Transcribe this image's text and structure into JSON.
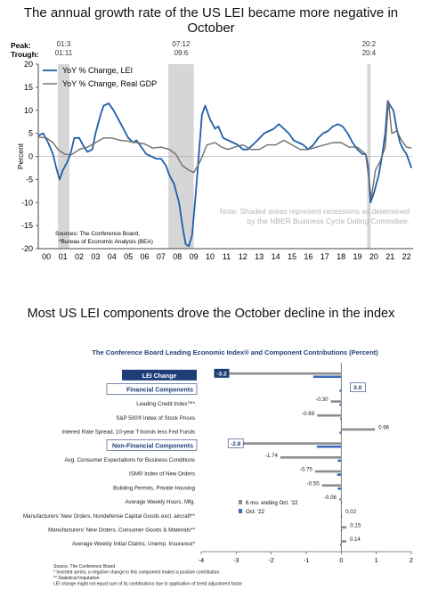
{
  "titles": {
    "top": "The annual growth rate of the US LEI became more negative in October",
    "bottom": "Most US LEI components drove the October decline in the index"
  },
  "chart_data": [
    {
      "type": "line",
      "title": "",
      "ylabel": "Percent",
      "ylim": [
        -20,
        20
      ],
      "yticks": [
        -20,
        -15,
        -10,
        -5,
        0,
        5,
        10,
        15,
        20
      ],
      "xlim": [
        2000.0,
        2022.9
      ],
      "xticks": [
        {
          "label": "00",
          "x": 2000.5
        },
        {
          "label": "01",
          "x": 2001.5
        },
        {
          "label": "02",
          "x": 2002.5
        },
        {
          "label": "03",
          "x": 2003.5
        },
        {
          "label": "04",
          "x": 2004.5
        },
        {
          "label": "05",
          "x": 2005.5
        },
        {
          "label": "06",
          "x": 2006.5
        },
        {
          "label": "07",
          "x": 2007.5
        },
        {
          "label": "08",
          "x": 2008.5
        },
        {
          "label": "09",
          "x": 2009.5
        },
        {
          "label": "10",
          "x": 2010.5
        },
        {
          "label": "11",
          "x": 2011.5
        },
        {
          "label": "12",
          "x": 2012.5
        },
        {
          "label": "13",
          "x": 2013.5
        },
        {
          "label": "14",
          "x": 2014.5
        },
        {
          "label": "15",
          "x": 2015.5
        },
        {
          "label": "16",
          "x": 2016.5
        },
        {
          "label": "17",
          "x": 2017.5
        },
        {
          "label": "18",
          "x": 2018.5
        },
        {
          "label": "19",
          "x": 2019.5
        },
        {
          "label": "20",
          "x": 2020.5
        },
        {
          "label": "21",
          "x": 2021.5
        },
        {
          "label": "22",
          "x": 2022.5
        }
      ],
      "peak_label": "Peak:",
      "trough_label": "Trough:",
      "recessions": [
        {
          "peak": "01:3",
          "trough": "01:11",
          "start": 2001.2,
          "end": 2001.9
        },
        {
          "peak": "07:12",
          "trough": "09:6",
          "start": 2007.95,
          "end": 2009.5
        },
        {
          "peak": "20:2",
          "trough": "20:4",
          "start": 2020.1,
          "end": 2020.3
        }
      ],
      "series": [
        {
          "name": "YoY % Change, LEI",
          "color": "#1f5fa8",
          "points": [
            [
              2000.0,
              4.5
            ],
            [
              2000.3,
              5.0
            ],
            [
              2000.6,
              3.0
            ],
            [
              2000.9,
              0.5
            ],
            [
              2001.1,
              -2.5
            ],
            [
              2001.3,
              -5.0
            ],
            [
              2001.5,
              -3.0
            ],
            [
              2001.8,
              -1.0
            ],
            [
              2002.0,
              1.0
            ],
            [
              2002.2,
              4.0
            ],
            [
              2002.5,
              4.0
            ],
            [
              2002.8,
              2.0
            ],
            [
              2003.0,
              1.0
            ],
            [
              2003.3,
              1.5
            ],
            [
              2003.5,
              5.0
            ],
            [
              2003.8,
              9.0
            ],
            [
              2004.0,
              11.0
            ],
            [
              2004.3,
              11.5
            ],
            [
              2004.6,
              10.0
            ],
            [
              2004.9,
              8.0
            ],
            [
              2005.2,
              6.0
            ],
            [
              2005.5,
              4.0
            ],
            [
              2005.8,
              3.0
            ],
            [
              2006.0,
              3.5
            ],
            [
              2006.3,
              2.0
            ],
            [
              2006.6,
              0.5
            ],
            [
              2006.9,
              0.0
            ],
            [
              2007.2,
              -0.5
            ],
            [
              2007.5,
              -0.5
            ],
            [
              2007.8,
              -2.0
            ],
            [
              2008.0,
              -4.0
            ],
            [
              2008.3,
              -6.0
            ],
            [
              2008.6,
              -10.0
            ],
            [
              2008.85,
              -16.0
            ],
            [
              2009.0,
              -19.0
            ],
            [
              2009.2,
              -19.5
            ],
            [
              2009.4,
              -17.0
            ],
            [
              2009.6,
              -9.0
            ],
            [
              2009.8,
              0.0
            ],
            [
              2010.0,
              9.0
            ],
            [
              2010.2,
              11.0
            ],
            [
              2010.5,
              8.0
            ],
            [
              2010.8,
              6.0
            ],
            [
              2011.0,
              6.5
            ],
            [
              2011.3,
              4.0
            ],
            [
              2011.6,
              3.5
            ],
            [
              2011.9,
              3.0
            ],
            [
              2012.2,
              2.5
            ],
            [
              2012.5,
              1.5
            ],
            [
              2012.8,
              1.5
            ],
            [
              2013.1,
              2.5
            ],
            [
              2013.4,
              3.5
            ],
            [
              2013.8,
              5.0
            ],
            [
              2014.1,
              5.5
            ],
            [
              2014.4,
              6.0
            ],
            [
              2014.7,
              7.0
            ],
            [
              2015.0,
              6.0
            ],
            [
              2015.3,
              5.0
            ],
            [
              2015.6,
              3.5
            ],
            [
              2015.9,
              3.0
            ],
            [
              2016.2,
              2.5
            ],
            [
              2016.5,
              1.5
            ],
            [
              2016.8,
              2.5
            ],
            [
              2017.1,
              4.0
            ],
            [
              2017.4,
              5.0
            ],
            [
              2017.7,
              5.5
            ],
            [
              2018.0,
              6.5
            ],
            [
              2018.3,
              7.0
            ],
            [
              2018.6,
              6.5
            ],
            [
              2018.9,
              5.0
            ],
            [
              2019.2,
              3.0
            ],
            [
              2019.5,
              1.5
            ],
            [
              2019.8,
              0.5
            ],
            [
              2020.0,
              0.5
            ],
            [
              2020.15,
              -2.0
            ],
            [
              2020.3,
              -10.0
            ],
            [
              2020.5,
              -8.0
            ],
            [
              2020.8,
              -4.0
            ],
            [
              2021.0,
              0.0
            ],
            [
              2021.2,
              5.0
            ],
            [
              2021.35,
              12.0
            ],
            [
              2021.5,
              11.0
            ],
            [
              2021.7,
              10.0
            ],
            [
              2021.9,
              6.0
            ],
            [
              2022.1,
              3.0
            ],
            [
              2022.3,
              1.5
            ],
            [
              2022.5,
              0.5
            ],
            [
              2022.65,
              -1.0
            ],
            [
              2022.8,
              -2.5
            ]
          ]
        },
        {
          "name": "YoY % Change, Real GDP",
          "color": "#6e6e6e",
          "points": [
            [
              2000.0,
              4.2
            ],
            [
              2000.5,
              4.0
            ],
            [
              2000.9,
              3.0
            ],
            [
              2001.2,
              1.5
            ],
            [
              2001.6,
              0.5
            ],
            [
              2002.0,
              0.3
            ],
            [
              2002.5,
              1.5
            ],
            [
              2003.0,
              2.0
            ],
            [
              2003.5,
              3.0
            ],
            [
              2004.0,
              4.0
            ],
            [
              2004.5,
              4.0
            ],
            [
              2005.0,
              3.5
            ],
            [
              2005.5,
              3.3
            ],
            [
              2006.0,
              3.0
            ],
            [
              2006.5,
              2.7
            ],
            [
              2007.0,
              1.8
            ],
            [
              2007.5,
              2.0
            ],
            [
              2008.0,
              1.5
            ],
            [
              2008.4,
              0.5
            ],
            [
              2008.8,
              -2.0
            ],
            [
              2009.2,
              -3.0
            ],
            [
              2009.5,
              -3.5
            ],
            [
              2009.9,
              -1.0
            ],
            [
              2010.3,
              2.5
            ],
            [
              2010.8,
              3.0
            ],
            [
              2011.2,
              2.0
            ],
            [
              2011.6,
              1.5
            ],
            [
              2012.0,
              2.0
            ],
            [
              2012.5,
              2.5
            ],
            [
              2013.0,
              1.5
            ],
            [
              2013.5,
              1.5
            ],
            [
              2014.0,
              2.5
            ],
            [
              2014.5,
              2.5
            ],
            [
              2015.0,
              3.5
            ],
            [
              2015.5,
              2.5
            ],
            [
              2016.0,
              1.5
            ],
            [
              2016.5,
              1.5
            ],
            [
              2017.0,
              2.0
            ],
            [
              2017.5,
              2.5
            ],
            [
              2018.0,
              3.0
            ],
            [
              2018.5,
              3.0
            ],
            [
              2019.0,
              2.0
            ],
            [
              2019.5,
              2.0
            ],
            [
              2020.0,
              0.5
            ],
            [
              2020.2,
              -5.0
            ],
            [
              2020.35,
              -9.0
            ],
            [
              2020.6,
              -3.0
            ],
            [
              2020.9,
              -1.0
            ],
            [
              2021.2,
              2.0
            ],
            [
              2021.4,
              12.0
            ],
            [
              2021.6,
              5.0
            ],
            [
              2021.9,
              5.5
            ],
            [
              2022.2,
              3.5
            ],
            [
              2022.5,
              2.0
            ],
            [
              2022.8,
              1.8
            ]
          ]
        }
      ],
      "legend_position": "top-left",
      "note": "Note: Shaded areas represent recessions as determined by the NBER Business Cycle Dating Committee.",
      "sources": [
        "Sources: The Conference Board,",
        "*Bureau of Economic Analysis (BEA)"
      ]
    },
    {
      "type": "bar",
      "orientation": "horizontal",
      "title": "The Conference Board Leading Economic Index® and Component Contributions (Percent)",
      "xlim": [
        -4,
        2
      ],
      "xticks": [
        "-4",
        "-3",
        "-2",
        "-1",
        "0",
        "1",
        "2"
      ],
      "legend_position": "bottom-center",
      "legend": [
        {
          "name": "6 mo. ending Oct. '22",
          "color": "#8c8c8c"
        },
        {
          "name": "Oct. '22",
          "color": "#3a6db5"
        }
      ],
      "rows": [
        {
          "label": "LEI Change",
          "style": "header-dark",
          "six_month": -3.2,
          "october": -0.8,
          "value_label": "-3.2"
        },
        {
          "label": "Financial Components",
          "style": "header-light",
          "six_month": 0.0,
          "october": -0.05,
          "value_label": "0.0"
        },
        {
          "label": "Leading Credit Index™*",
          "style": "item",
          "six_month": -0.3,
          "october": -0.05,
          "value_label": "-0.30"
        },
        {
          "label": "S&P 500® Index of Stock Prices",
          "style": "item",
          "six_month": -0.69,
          "october": -0.03,
          "value_label": "-0.69"
        },
        {
          "label": "Interest Rate Spread, 10-year T-bonds less Fed Funds",
          "style": "item",
          "six_month": 0.96,
          "october": -0.05,
          "value_label": "0.96"
        },
        {
          "label": "Non-Financial Components",
          "style": "header-light",
          "six_month": -2.8,
          "october": -0.7,
          "value_label": "-2.8"
        },
        {
          "label": "Avg. Consumer Expectations for Business Conditions",
          "style": "item",
          "six_month": -1.74,
          "october": -0.1,
          "value_label": "-1.74"
        },
        {
          "label": "ISM® Index of New Orders",
          "style": "item",
          "six_month": -0.75,
          "october": -0.12,
          "value_label": "-0.75"
        },
        {
          "label": "Building Permits, Private Housing",
          "style": "item",
          "six_month": -0.55,
          "october": -0.1,
          "value_label": "-0.55"
        },
        {
          "label": "Average Weekly Hours, Mfg.",
          "style": "item",
          "six_month": -0.06,
          "october": 0.0,
          "value_label": "-0.06"
        },
        {
          "label": "Manufacturers' New Orders, Nondefense Capital Goods excl. aircraft**",
          "style": "item",
          "six_month": 0.02,
          "october": 0.0,
          "value_label": "0.02"
        },
        {
          "label": "Manufacturers' New Orders, Consumer Goods & Materials**",
          "style": "item",
          "six_month": 0.15,
          "october": 0.02,
          "value_label": "0.15"
        },
        {
          "label": "Average Weekly Initial Claims, Unemp. Insurance*",
          "style": "item",
          "six_month": 0.14,
          "october": -0.03,
          "value_label": "0.14"
        }
      ],
      "footnotes": [
        "Source: The Conference Board",
        "* Inverted series; a negative change in this component makes a positive contribution.",
        "** Statistical Imputation",
        "LEI change might not equal sum of its contributions due to application of trend adjustment factor"
      ]
    }
  ]
}
